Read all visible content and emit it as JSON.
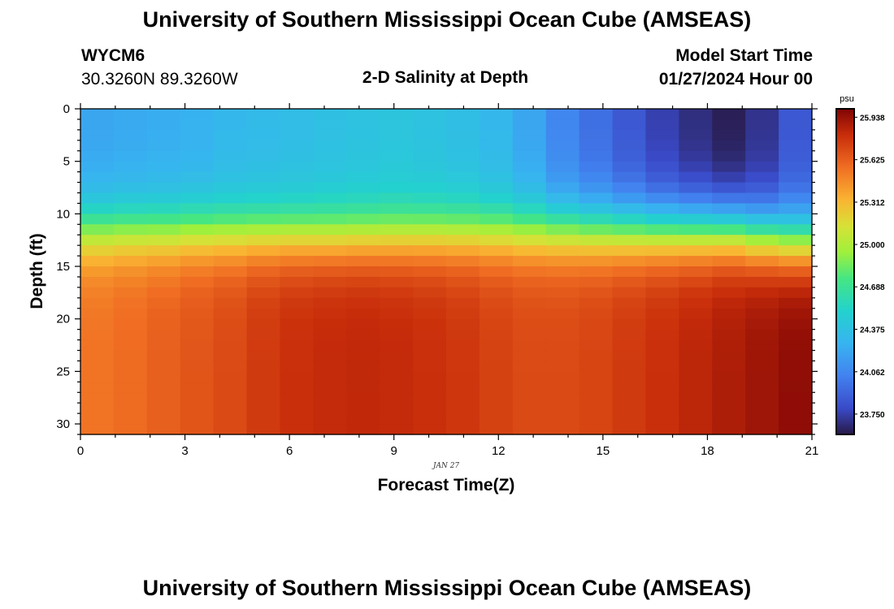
{
  "title": "University of Southern Mississippi Ocean Cube (AMSEAS)",
  "footer_title": "University of Southern Mississippi Ocean Cube (AMSEAS)",
  "station": {
    "id": "WYCM6",
    "coords": "30.3260N  89.3260W"
  },
  "model_start": {
    "label": "Model Start Time",
    "value": "01/27/2024 Hour 00"
  },
  "chart_data": {
    "type": "heatmap",
    "title": "2-D Salinity at Depth",
    "xlabel": "Forecast Time(Z)",
    "ylabel": "Depth (ft)",
    "x_range": [
      0,
      21
    ],
    "y_range": [
      0,
      31
    ],
    "x_ticks": [
      0,
      3,
      6,
      9,
      12,
      15,
      18,
      21
    ],
    "y_ticks": [
      0,
      5,
      10,
      15,
      20,
      25,
      30
    ],
    "date_annotation": "JAN 27",
    "colorbar": {
      "unit": "psu",
      "min": 23.6,
      "max": 26.0,
      "ticks": [
        "25.938",
        "25.625",
        "25.312",
        "25.000",
        "24.688",
        "24.375",
        "24.062",
        "23.750"
      ]
    },
    "surface_salinity_by_hour": [
      24.2,
      24.22,
      24.24,
      24.26,
      24.3,
      24.32,
      24.34,
      24.36,
      24.38,
      24.4,
      24.38,
      24.35,
      24.3,
      24.2,
      24.05,
      23.95,
      23.85,
      23.75,
      23.68,
      23.62,
      23.7,
      23.85
    ],
    "mix_depth_ft_by_hour": [
      8.0,
      8.0,
      8.1,
      8.1,
      8.2,
      8.3,
      8.4,
      8.5,
      8.5,
      8.5,
      8.4,
      8.3,
      8.2,
      8.1,
      8.0,
      8.0,
      8.0,
      8.0,
      8.0,
      8.0,
      8.5,
      9.0
    ],
    "bottom_salinity_by_hour": [
      25.55,
      25.58,
      25.62,
      25.66,
      25.7,
      25.76,
      25.8,
      25.82,
      25.83,
      25.82,
      25.8,
      25.77,
      25.73,
      25.7,
      25.7,
      25.72,
      25.76,
      25.8,
      25.84,
      25.88,
      25.92,
      25.96
    ]
  }
}
